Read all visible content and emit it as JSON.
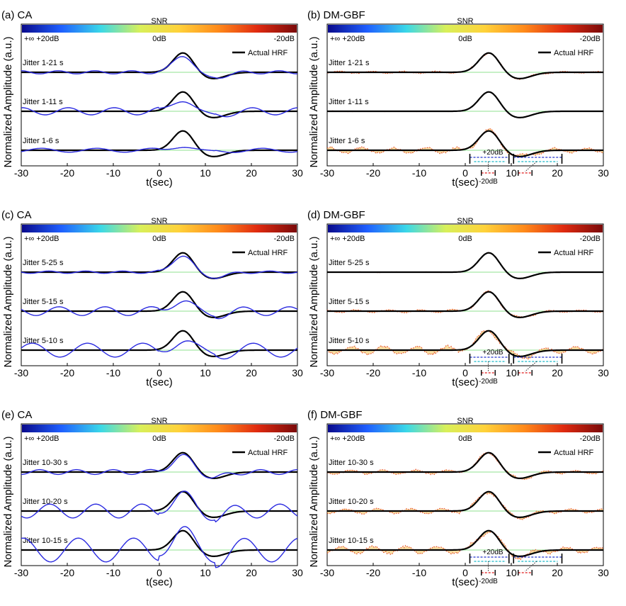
{
  "chart_data": [
    {
      "panel": "(a) CA",
      "type": "line",
      "colorbar": {
        "title": "SNR",
        "left_label": "+∞  +20dB",
        "mid_label": "0dB",
        "right_label": "-20dB"
      },
      "legend": "Actual HRF",
      "ylabel": "Normalized Amplitude (a.u.)",
      "xlabel": "t(sec)",
      "xlim": [
        -30,
        30
      ],
      "xticks": [
        -30,
        -20,
        -10,
        0,
        10,
        20,
        30
      ],
      "rows": [
        {
          "label": "Jitter 1-21 s",
          "method": "ca",
          "rip": 0.08,
          "est_amp": 0.85
        },
        {
          "label": "Jitter 1-11 s",
          "method": "ca",
          "rip": 0.18,
          "est_amp": 0.6
        },
        {
          "label": "Jitter 1-6 s",
          "method": "ca",
          "rip": 0.1,
          "est_amp": 0.2
        }
      ]
    },
    {
      "panel": "(b) DM-GBF",
      "type": "line",
      "colorbar": {
        "title": "SNR",
        "left_label": "+∞  +20dB",
        "mid_label": "0dB",
        "right_label": "-20dB"
      },
      "legend": "Actual HRF",
      "ylabel": "Normalized Amplitude (a.u.)",
      "xlabel": "t(sec)",
      "xlim": [
        -30,
        30
      ],
      "xticks": [
        -30,
        -20,
        -10,
        0,
        10,
        20,
        30
      ],
      "rows": [
        {
          "label": "Jitter 1-21 s",
          "method": "dm",
          "noise": 0.15
        },
        {
          "label": "Jitter 1-11 s",
          "method": "dm",
          "noise": 0.05
        },
        {
          "label": "Jitter 1-6 s",
          "method": "dm",
          "noise": 0.4
        }
      ],
      "inset": {
        "top_label": "+20dB",
        "bottom_label": "-20dB"
      }
    },
    {
      "panel": "(c) CA",
      "type": "line",
      "colorbar": {
        "title": "SNR",
        "left_label": "+∞  +20dB",
        "mid_label": "0dB",
        "right_label": "-20dB"
      },
      "legend": "Actual HRF",
      "ylabel": "Normalized Amplitude (a.u.)",
      "xlabel": "t(sec)",
      "xlim": [
        -30,
        30
      ],
      "xticks": [
        -30,
        -20,
        -10,
        0,
        10,
        20,
        30
      ],
      "rows": [
        {
          "label": "Jitter 5-25 s",
          "method": "ca",
          "rip": 0.06,
          "est_amp": 0.85
        },
        {
          "label": "Jitter 5-15 s",
          "method": "ca",
          "rip": 0.22,
          "est_amp": 0.55
        },
        {
          "label": "Jitter 5-10 s",
          "method": "ca",
          "rip": 0.35,
          "est_amp": 0.45
        }
      ]
    },
    {
      "panel": "(d) DM-GBF",
      "type": "line",
      "colorbar": {
        "title": "SNR",
        "left_label": "+∞  +20dB",
        "mid_label": "0dB",
        "right_label": "-20dB"
      },
      "legend": "Actual HRF",
      "ylabel": "Normalized Amplitude (a.u.)",
      "xlabel": "t(sec)",
      "xlim": [
        -30,
        30
      ],
      "xticks": [
        -30,
        -20,
        -10,
        0,
        10,
        20,
        30
      ],
      "rows": [
        {
          "label": "Jitter 5-25 s",
          "method": "dm",
          "noise": 0.05
        },
        {
          "label": "Jitter 5-15 s",
          "method": "dm",
          "noise": 0.2
        },
        {
          "label": "Jitter 5-10 s",
          "method": "dm",
          "noise": 0.55
        }
      ],
      "inset": {
        "top_label": "+20dB",
        "bottom_label": "-20dB"
      }
    },
    {
      "panel": "(e) CA",
      "type": "line",
      "colorbar": {
        "title": "SNR",
        "left_label": "+∞  +20dB",
        "mid_label": "0dB",
        "right_label": "-20dB"
      },
      "legend": "Actual HRF",
      "ylabel": "Normalized Amplitude (a.u.)",
      "xlabel": "t(sec)",
      "xlim": [
        -30,
        30
      ],
      "xticks": [
        -30,
        -20,
        -10,
        0,
        10,
        20,
        30
      ],
      "rows": [
        {
          "label": "Jitter 10-30 s",
          "method": "ca",
          "rip": 0.12,
          "est_amp": 0.85
        },
        {
          "label": "Jitter 10-20 s",
          "method": "ca",
          "rip": 0.35,
          "est_amp": 0.85
        },
        {
          "label": "Jitter 10-15 s",
          "method": "ca",
          "rip": 0.6,
          "est_amp": 0.9
        }
      ]
    },
    {
      "panel": "(f) DM-GBF",
      "type": "line",
      "colorbar": {
        "title": "SNR",
        "left_label": "+∞  +20dB",
        "mid_label": "0dB",
        "right_label": "-20dB"
      },
      "legend": "Actual HRF",
      "ylabel": "Normalized Amplitude (a.u.)",
      "xlabel": "t(sec)",
      "xlim": [
        -30,
        30
      ],
      "xticks": [
        -30,
        -20,
        -10,
        0,
        10,
        20,
        30
      ],
      "rows": [
        {
          "label": "Jitter 10-30 s",
          "method": "dm",
          "noise": 0.3
        },
        {
          "label": "Jitter 10-20 s",
          "method": "dm",
          "noise": 0.35
        },
        {
          "label": "Jitter 10-15 s",
          "method": "dm",
          "noise": 0.5
        }
      ],
      "inset": {
        "top_label": "+20dB",
        "bottom_label": "-20dB"
      }
    }
  ],
  "colors": {
    "actual": "#000000",
    "ca_est": "#2a2ae0",
    "dm_noisy": "#e8502a",
    "fill_warm": "#f2c85a",
    "fill_cool": "#7fd8d0",
    "cbar": [
      "#0a0a8c",
      "#1f5fff",
      "#3ad8e8",
      "#d8f05a",
      "#ffd23a",
      "#ff8a1a",
      "#e02a10",
      "#7a0a0a"
    ],
    "inset_blue": "#2233cc",
    "inset_cyan": "#19b8c8",
    "inset_red": "#e01a1a"
  }
}
